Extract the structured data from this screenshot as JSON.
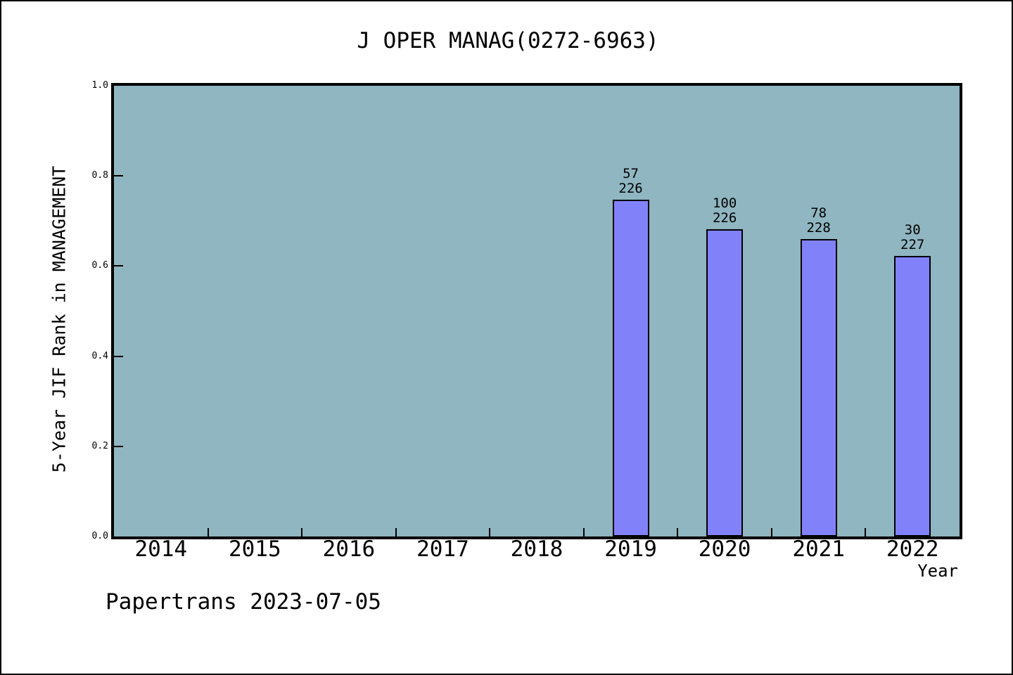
{
  "figure": {
    "title": "J OPER MANAG(0272-6963)",
    "footer": "Papertrans 2023-07-05"
  },
  "chart_data": {
    "type": "bar",
    "title": "J OPER MANAG(0272-6963)",
    "xlabel": "Year",
    "ylabel": "5-Year JIF Rank in MANAGEMENT",
    "ylim": [
      0.0,
      1.0
    ],
    "yticks": [
      0.0,
      0.2,
      0.4,
      0.6,
      0.8,
      1.0
    ],
    "grid": false,
    "legend_position": "none",
    "categories": [
      "2014",
      "2015",
      "2016",
      "2017",
      "2018",
      "2019",
      "2020",
      "2021",
      "2022"
    ],
    "bars": [
      {
        "category": "2019",
        "numerator": "57",
        "denominator": "226",
        "label": "57/226",
        "bar_height": 0.747
      },
      {
        "category": "2020",
        "numerator": "100",
        "denominator": "226",
        "label": "100/226",
        "bar_height": 0.682
      },
      {
        "category": "2021",
        "numerator": "78",
        "denominator": "228",
        "label": "78/228",
        "bar_height": 0.66
      },
      {
        "category": "2022",
        "numerator": "30",
        "denominator": "227",
        "label": "30/227",
        "bar_height": 0.622
      }
    ],
    "colors": {
      "bar_fill": "#8182fa",
      "bar_edge": "#000000",
      "plot_bg": "#8fb6c1",
      "figure_bg": "#ffffff",
      "text": "#000000"
    }
  }
}
